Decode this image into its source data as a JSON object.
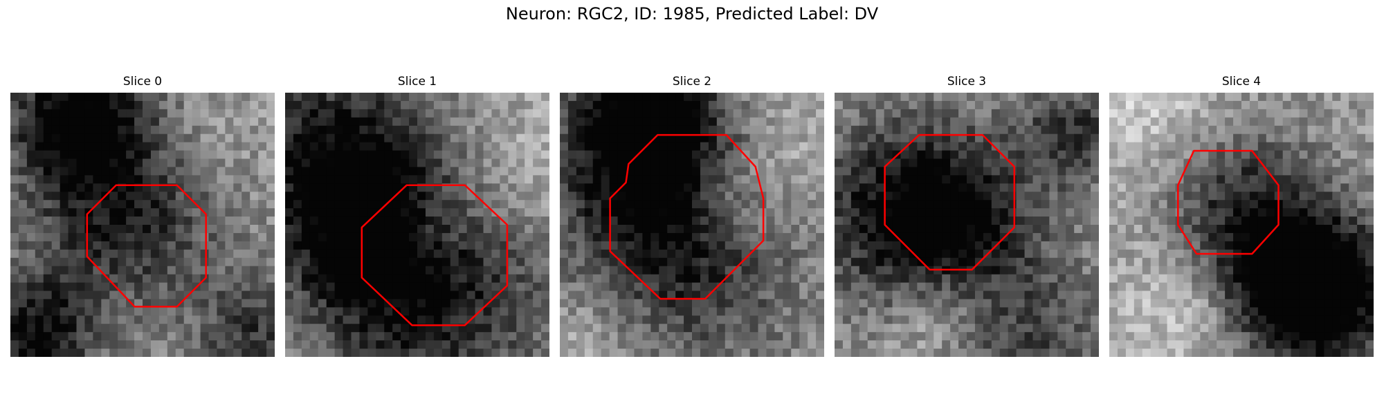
{
  "figure": {
    "title": "Neuron: RGC2, ID: 1985, Predicted Label: DV",
    "outline_color": "#ff0000",
    "colormap": "gray",
    "slices": [
      {
        "title": "Slice 0",
        "blobs": [
          [
            0.45,
            0.42,
            0.26,
            -0.55
          ],
          [
            0.25,
            0.08,
            0.18,
            -0.6
          ],
          [
            0.1,
            0.92,
            0.16,
            -0.55
          ],
          [
            0.95,
            0.95,
            0.18,
            -0.4
          ],
          [
            0.65,
            0.25,
            0.2,
            0.15
          ]
        ],
        "outline": [
          [
            0.4,
            0.35
          ],
          [
            0.63,
            0.35
          ],
          [
            0.74,
            0.46
          ],
          [
            0.74,
            0.7
          ],
          [
            0.63,
            0.81
          ],
          [
            0.47,
            0.81
          ],
          [
            0.29,
            0.62
          ],
          [
            0.29,
            0.46
          ]
        ]
      },
      {
        "title": "Slice 1",
        "blobs": [
          [
            0.18,
            0.25,
            0.28,
            -0.5
          ],
          [
            0.55,
            0.72,
            0.34,
            -0.5
          ],
          [
            0.35,
            0.55,
            0.22,
            -0.3
          ],
          [
            0.55,
            0.5,
            0.12,
            0.25
          ],
          [
            0.85,
            0.3,
            0.2,
            0.2
          ]
        ],
        "outline": [
          [
            0.46,
            0.35
          ],
          [
            0.68,
            0.35
          ],
          [
            0.84,
            0.5
          ],
          [
            0.84,
            0.73
          ],
          [
            0.68,
            0.88
          ],
          [
            0.48,
            0.88
          ],
          [
            0.29,
            0.7
          ],
          [
            0.29,
            0.51
          ]
        ]
      },
      {
        "title": "Slice 2",
        "blobs": [
          [
            0.32,
            0.1,
            0.2,
            -0.7
          ],
          [
            0.42,
            0.55,
            0.32,
            -0.6
          ],
          [
            0.65,
            0.42,
            0.14,
            0.2
          ],
          [
            0.85,
            0.2,
            0.22,
            0.15
          ],
          [
            0.15,
            0.9,
            0.2,
            0.2
          ]
        ],
        "outline": [
          [
            0.37,
            0.16
          ],
          [
            0.63,
            0.16
          ],
          [
            0.74,
            0.28
          ],
          [
            0.77,
            0.4
          ],
          [
            0.77,
            0.56
          ],
          [
            0.55,
            0.78
          ],
          [
            0.38,
            0.78
          ],
          [
            0.19,
            0.6
          ],
          [
            0.19,
            0.4
          ],
          [
            0.25,
            0.34
          ],
          [
            0.26,
            0.27
          ]
        ]
      },
      {
        "title": "Slice 3",
        "blobs": [
          [
            0.28,
            0.47,
            0.26,
            -0.6
          ],
          [
            0.5,
            0.45,
            0.2,
            -0.25
          ],
          [
            0.9,
            0.15,
            0.14,
            -0.4
          ],
          [
            0.7,
            0.95,
            0.25,
            -0.35
          ],
          [
            0.4,
            0.85,
            0.16,
            0.3
          ]
        ],
        "outline": [
          [
            0.32,
            0.16
          ],
          [
            0.56,
            0.16
          ],
          [
            0.68,
            0.28
          ],
          [
            0.68,
            0.51
          ],
          [
            0.64,
            0.55
          ],
          [
            0.52,
            0.67
          ],
          [
            0.36,
            0.67
          ],
          [
            0.19,
            0.5
          ],
          [
            0.19,
            0.28
          ]
        ]
      },
      {
        "title": "Slice 4",
        "blobs": [
          [
            0.45,
            0.38,
            0.22,
            -0.45
          ],
          [
            0.68,
            0.68,
            0.18,
            -0.6
          ],
          [
            0.82,
            0.8,
            0.22,
            -0.55
          ],
          [
            0.3,
            0.8,
            0.2,
            0.2
          ],
          [
            0.2,
            0.12,
            0.25,
            0.25
          ]
        ],
        "outline": [
          [
            0.32,
            0.22
          ],
          [
            0.54,
            0.22
          ],
          [
            0.64,
            0.35
          ],
          [
            0.64,
            0.5
          ],
          [
            0.54,
            0.61
          ],
          [
            0.33,
            0.61
          ],
          [
            0.26,
            0.5
          ],
          [
            0.26,
            0.35
          ]
        ]
      }
    ]
  }
}
